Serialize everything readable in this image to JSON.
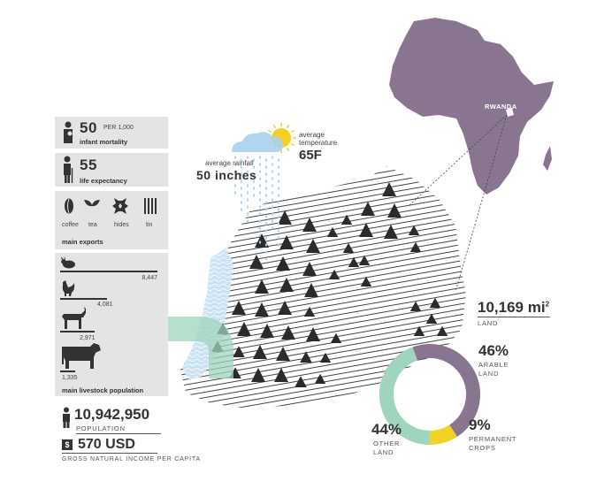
{
  "infant_mortality": {
    "value": "50",
    "unit": "PER 1,000",
    "label": "infant mortality",
    "icon": "mother-child-icon"
  },
  "life_expectancy": {
    "value": "55",
    "label": "life expectancy",
    "icon": "elderly-person-icon"
  },
  "main_exports": {
    "label": "main exports",
    "items": [
      {
        "name": "coffee",
        "icon": "coffee-bean-icon"
      },
      {
        "name": "tea",
        "icon": "tea-leaf-icon"
      },
      {
        "name": "hides",
        "icon": "hide-icon"
      },
      {
        "name": "tin",
        "icon": "tin-bars-icon"
      }
    ]
  },
  "livestock": {
    "label": "main livestock population",
    "items": [
      {
        "animal": "rabbit",
        "value": 8447,
        "display": "8,447"
      },
      {
        "animal": "chicken",
        "value": 4081,
        "display": "4,081"
      },
      {
        "animal": "goat",
        "value": 2971,
        "display": "2,971"
      },
      {
        "animal": "cow",
        "value": 1335,
        "display": "1,335"
      }
    ]
  },
  "population": {
    "value": "10,942,950",
    "label": "POPULATION"
  },
  "income": {
    "value": "570 USD",
    "label": "GROSS NATURAL INCOME PER CAPITA",
    "icon": "dollar-icon"
  },
  "weather": {
    "rainfall_label": "average rainfall",
    "rainfall_value": "50 inches",
    "temperature_label_1": "average",
    "temperature_label_2": "temperature",
    "temperature_value": "65F"
  },
  "africa": {
    "label": "RWANDA",
    "color": "#8a7590"
  },
  "area": {
    "value": "10,169 mi",
    "superscript": "2",
    "label": "LAND"
  },
  "land_use": {
    "segments": [
      {
        "name_1": "ARABLE",
        "name_2": "LAND",
        "percent": 46,
        "display": "46%",
        "color": "#8a7590"
      },
      {
        "name_1": "PERMANENT",
        "name_2": "CROPS",
        "percent": 9,
        "display": "9%",
        "color": "#f0d324"
      },
      {
        "name_1": "OTHER",
        "name_2": "LAND",
        "percent": 44,
        "display": "44%",
        "color": "#9fd4bd"
      }
    ]
  },
  "colors": {
    "panel": "#e4e4e4",
    "lake": "#c9e3f3",
    "arrow": "#9fd4bd",
    "sun": "#f2d21e",
    "cloud": "#a8d3ee"
  }
}
